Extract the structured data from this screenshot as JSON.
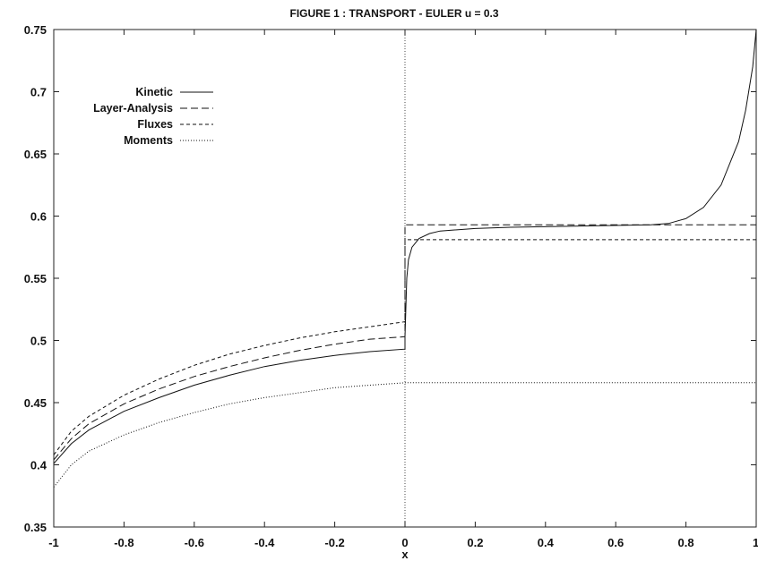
{
  "chart_data": {
    "type": "line",
    "title": "FIGURE 1 : TRANSPORT - EULER   u = 0.3",
    "xlabel": "x",
    "ylabel": "",
    "xlim": [
      -1,
      1
    ],
    "ylim": [
      0.35,
      0.75
    ],
    "x_ticks": [
      "-1",
      "-0.8",
      "-0.6",
      "-0.4",
      "-0.2",
      "0",
      "0.2",
      "0.4",
      "0.6",
      "0.8",
      "1"
    ],
    "y_ticks": [
      "0.35",
      "0.4",
      "0.45",
      "0.5",
      "0.55",
      "0.6",
      "0.65",
      "0.7",
      "0.75"
    ],
    "grid": false,
    "legend_position": "top-left",
    "series": [
      {
        "name": "Kinetic",
        "dash": "solid",
        "x": [
          -1,
          -0.95,
          -0.9,
          -0.8,
          -0.7,
          -0.6,
          -0.5,
          -0.4,
          -0.3,
          -0.2,
          -0.1,
          0,
          0,
          0.005,
          0.01,
          0.02,
          0.04,
          0.07,
          0.1,
          0.2,
          0.3,
          0.5,
          0.7,
          0.75,
          0.8,
          0.85,
          0.9,
          0.95,
          0.97,
          0.99,
          1
        ],
        "y": [
          0.401,
          0.417,
          0.428,
          0.443,
          0.454,
          0.464,
          0.472,
          0.479,
          0.484,
          0.488,
          0.491,
          0.493,
          0.503,
          0.55,
          0.565,
          0.575,
          0.582,
          0.586,
          0.588,
          0.59,
          0.591,
          0.592,
          0.593,
          0.594,
          0.598,
          0.607,
          0.625,
          0.66,
          0.685,
          0.72,
          0.75
        ]
      },
      {
        "name": "Layer-Analysis",
        "dash": "long-dash",
        "x": [
          -1,
          -0.95,
          -0.9,
          -0.8,
          -0.7,
          -0.6,
          -0.5,
          -0.4,
          -0.3,
          -0.2,
          -0.1,
          0,
          0,
          1
        ],
        "y": [
          0.404,
          0.421,
          0.433,
          0.449,
          0.461,
          0.471,
          0.479,
          0.486,
          0.492,
          0.497,
          0.501,
          0.503,
          0.593,
          0.593
        ]
      },
      {
        "name": "Fluxes",
        "dash": "short-dash",
        "x": [
          -1,
          -0.95,
          -0.9,
          -0.8,
          -0.7,
          -0.6,
          -0.5,
          -0.4,
          -0.3,
          -0.2,
          -0.1,
          0,
          0,
          1
        ],
        "y": [
          0.408,
          0.427,
          0.439,
          0.456,
          0.469,
          0.48,
          0.489,
          0.496,
          0.502,
          0.507,
          0.511,
          0.515,
          0.581,
          0.581
        ]
      },
      {
        "name": "Moments",
        "dash": "dotted",
        "x": [
          -1,
          -0.95,
          -0.9,
          -0.8,
          -0.7,
          -0.6,
          -0.5,
          -0.4,
          -0.3,
          -0.2,
          -0.1,
          0,
          1
        ],
        "y": [
          0.382,
          0.4,
          0.411,
          0.424,
          0.434,
          0.442,
          0.449,
          0.454,
          0.458,
          0.462,
          0.464,
          0.466,
          0.466
        ]
      }
    ]
  }
}
